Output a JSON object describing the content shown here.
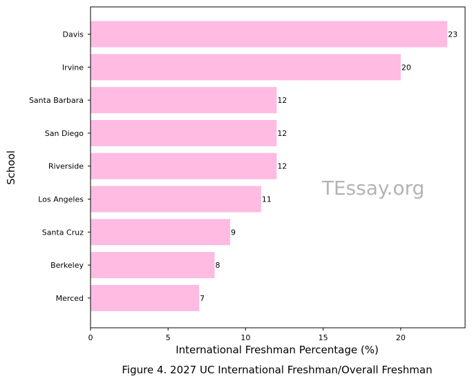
{
  "chart_data": {
    "type": "bar",
    "orientation": "horizontal",
    "categories": [
      "Davis",
      "Irvine",
      "Santa Barbara",
      "San Diego",
      "Riverside",
      "Los Angeles",
      "Santa Cruz",
      "Berkeley",
      "Merced"
    ],
    "values": [
      23,
      20,
      12,
      12,
      12,
      11,
      9,
      8,
      7
    ],
    "data_labels": [
      "23",
      "20",
      "12",
      "12",
      "12",
      "11",
      "9",
      "8",
      "7"
    ],
    "xlabel": "International Freshman Percentage (%)",
    "ylabel": "School",
    "xlim": [
      0,
      24.15
    ],
    "xticks": [
      "0",
      "5",
      "10",
      "15",
      "20"
    ],
    "grid": false,
    "bar_color": "#ffbbe1",
    "caption": "Figure 4. 2027 UC International Freshman/Overall Freshman"
  },
  "watermark": "TEssay.org"
}
